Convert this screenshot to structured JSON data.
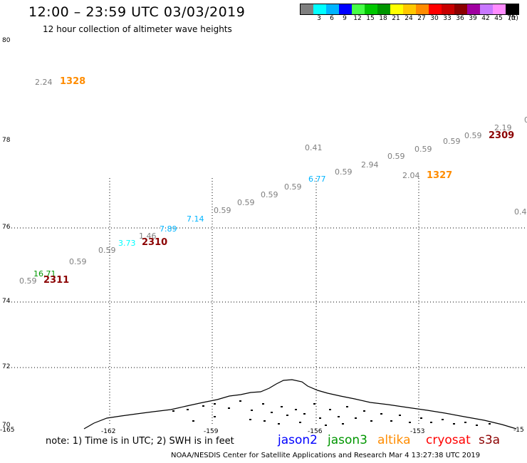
{
  "header": {
    "title": "12:00 – 23:59 UTC 03/03/2019",
    "subtitle": "12 hour collection of altimeter wave heights"
  },
  "color_scale": {
    "colors": [
      "#7f7f7f",
      "#00ffff",
      "#00b4ff",
      "#0000ff",
      "#46ff46",
      "#00c800",
      "#009600",
      "#ffff00",
      "#ffc800",
      "#ff8c00",
      "#ff0000",
      "#c80000",
      "#8b0000",
      "#a000a0",
      "#c878ff",
      "#ff8cff",
      "#000000"
    ],
    "labels": [
      "3",
      "6",
      "9",
      "12",
      "15",
      "18",
      "21",
      "24",
      "27",
      "30",
      "33",
      "36",
      "39",
      "42",
      "45",
      "70"
    ],
    "unit": "(ft)"
  },
  "axes": {
    "lat_labels": [
      "80",
      "78",
      "76",
      "74",
      "72",
      "70"
    ],
    "lon_labels": [
      "-165",
      "-162",
      "-159",
      "-156",
      "-153",
      "-15"
    ]
  },
  "observations": [
    {
      "text": "2.24",
      "color": "#7f7f7f",
      "kind": "swh"
    },
    {
      "text": "1328",
      "color": "#ff8c00",
      "kind": "time"
    },
    {
      "text": "0",
      "color": "#7f7f7f",
      "kind": "swh"
    },
    {
      "text": "2.19",
      "color": "#7f7f7f",
      "kind": "swh"
    },
    {
      "text": "0.59",
      "color": "#7f7f7f",
      "kind": "swh"
    },
    {
      "text": "2309",
      "color": "#8b0000",
      "kind": "time"
    },
    {
      "text": "0.59",
      "color": "#7f7f7f",
      "kind": "swh"
    },
    {
      "text": "0.41",
      "color": "#7f7f7f",
      "kind": "swh"
    },
    {
      "text": "0.59",
      "color": "#7f7f7f",
      "kind": "swh"
    },
    {
      "text": "0.59",
      "color": "#7f7f7f",
      "kind": "swh"
    },
    {
      "text": "2.94",
      "color": "#7f7f7f",
      "kind": "swh"
    },
    {
      "text": "0.59",
      "color": "#7f7f7f",
      "kind": "swh"
    },
    {
      "text": "2.04",
      "color": "#7f7f7f",
      "kind": "swh"
    },
    {
      "text": "1327",
      "color": "#ff8c00",
      "kind": "time"
    },
    {
      "text": "6.77",
      "color": "#00b4ff",
      "kind": "swh"
    },
    {
      "text": "0.59",
      "color": "#7f7f7f",
      "kind": "swh"
    },
    {
      "text": "0.59",
      "color": "#7f7f7f",
      "kind": "swh"
    },
    {
      "text": "0.59",
      "color": "#7f7f7f",
      "kind": "swh"
    },
    {
      "text": "0.59",
      "color": "#7f7f7f",
      "kind": "swh"
    },
    {
      "text": "7.14",
      "color": "#00b4ff",
      "kind": "swh"
    },
    {
      "text": "7.89",
      "color": "#00b4ff",
      "kind": "swh"
    },
    {
      "text": "1.46",
      "color": "#7f7f7f",
      "kind": "swh"
    },
    {
      "text": "3.73",
      "color": "#00ffff",
      "kind": "swh"
    },
    {
      "text": "2310",
      "color": "#8b0000",
      "kind": "time"
    },
    {
      "text": "0.59",
      "color": "#7f7f7f",
      "kind": "swh"
    },
    {
      "text": "0.59",
      "color": "#7f7f7f",
      "kind": "swh"
    },
    {
      "text": "16.71",
      "color": "#009600",
      "kind": "swh"
    },
    {
      "text": "0.59",
      "color": "#7f7f7f",
      "kind": "swh"
    },
    {
      "text": "2311",
      "color": "#8b0000",
      "kind": "time"
    },
    {
      "text": "0.4",
      "color": "#7f7f7f",
      "kind": "swh"
    }
  ],
  "footer": {
    "note": "note:  1) Time is in UTC;  2) SWH is in feet",
    "satellites": [
      {
        "name": "jason2",
        "color": "#0000ff"
      },
      {
        "name": "jason3",
        "color": "#009600"
      },
      {
        "name": "altika",
        "color": "#ff8c00"
      },
      {
        "name": "cryosat",
        "color": "#ff0000"
      },
      {
        "name": "s3a",
        "color": "#8b0000"
      }
    ],
    "credit": "NOAA/NESDIS Center for Satellite Applications and Research     Mar  4 13:27:38 UTC 2019"
  }
}
